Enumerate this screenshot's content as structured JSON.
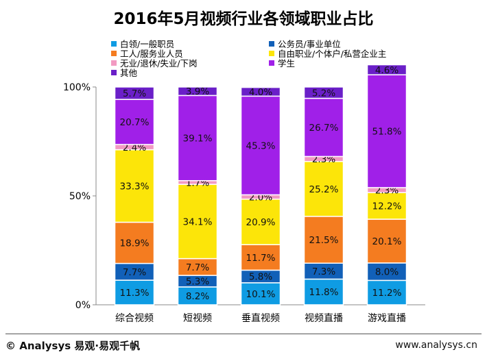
{
  "chart_data": {
    "type": "bar",
    "stacked": true,
    "title": "2016年5月视频行业各领域职业占比",
    "categories": [
      "综合视频",
      "短视频",
      "垂直视频",
      "视频直播",
      "游戏直播"
    ],
    "ylim": [
      0,
      100
    ],
    "yticks": [
      "0%",
      "50%",
      "100%"
    ],
    "series": [
      {
        "name": "白领/一般职员",
        "color": "#0f9ce3",
        "values": [
          11.3,
          8.2,
          10.1,
          11.8,
          11.2
        ]
      },
      {
        "name": "公务员/事业单位",
        "color": "#1160b8",
        "values": [
          7.7,
          5.3,
          5.8,
          7.3,
          8.0
        ]
      },
      {
        "name": "工人/服务业人员",
        "color": "#f47c20",
        "values": [
          18.9,
          7.7,
          11.7,
          21.5,
          20.1
        ]
      },
      {
        "name": "自由职业/个体户/私营企业主",
        "color": "#fce509",
        "values": [
          33.3,
          34.1,
          20.9,
          25.2,
          12.2
        ]
      },
      {
        "name": "无业/退休/失业/下岗",
        "color": "#f29ac2",
        "values": [
          2.4,
          1.7,
          2.0,
          2.3,
          2.3
        ]
      },
      {
        "name": "学生",
        "color": "#a020e8",
        "values": [
          20.7,
          39.1,
          45.3,
          26.7,
          51.8
        ]
      },
      {
        "name": "其他",
        "color": "#6a1fc8",
        "values": [
          5.7,
          3.9,
          4.0,
          5.2,
          4.6
        ]
      }
    ],
    "labels": [
      [
        "11.3%",
        "7.7%",
        "18.9%",
        "33.3%",
        "2.4%",
        "20.7%",
        "5.7%"
      ],
      [
        "8.2%",
        "5.3%",
        "7.7%",
        "34.1%",
        "1.7%",
        "39.1%",
        "3.9%"
      ],
      [
        "10.1%",
        "5.8%",
        "11.7%",
        "20.9%",
        "2.0%",
        "45.3%",
        "4.0%"
      ],
      [
        "11.8%",
        "7.3%",
        "21.5%",
        "25.2%",
        "2.3%",
        "26.7%",
        "5.2%"
      ],
      [
        "11.2%",
        "8.0%",
        "20.1%",
        "12.2%",
        "2.3%",
        "51.8%",
        "4.6%"
      ]
    ],
    "legend_position": "top"
  },
  "footer": {
    "left": "© Analysys 易观·易观千帆",
    "right": "www.analysys.cn"
  }
}
